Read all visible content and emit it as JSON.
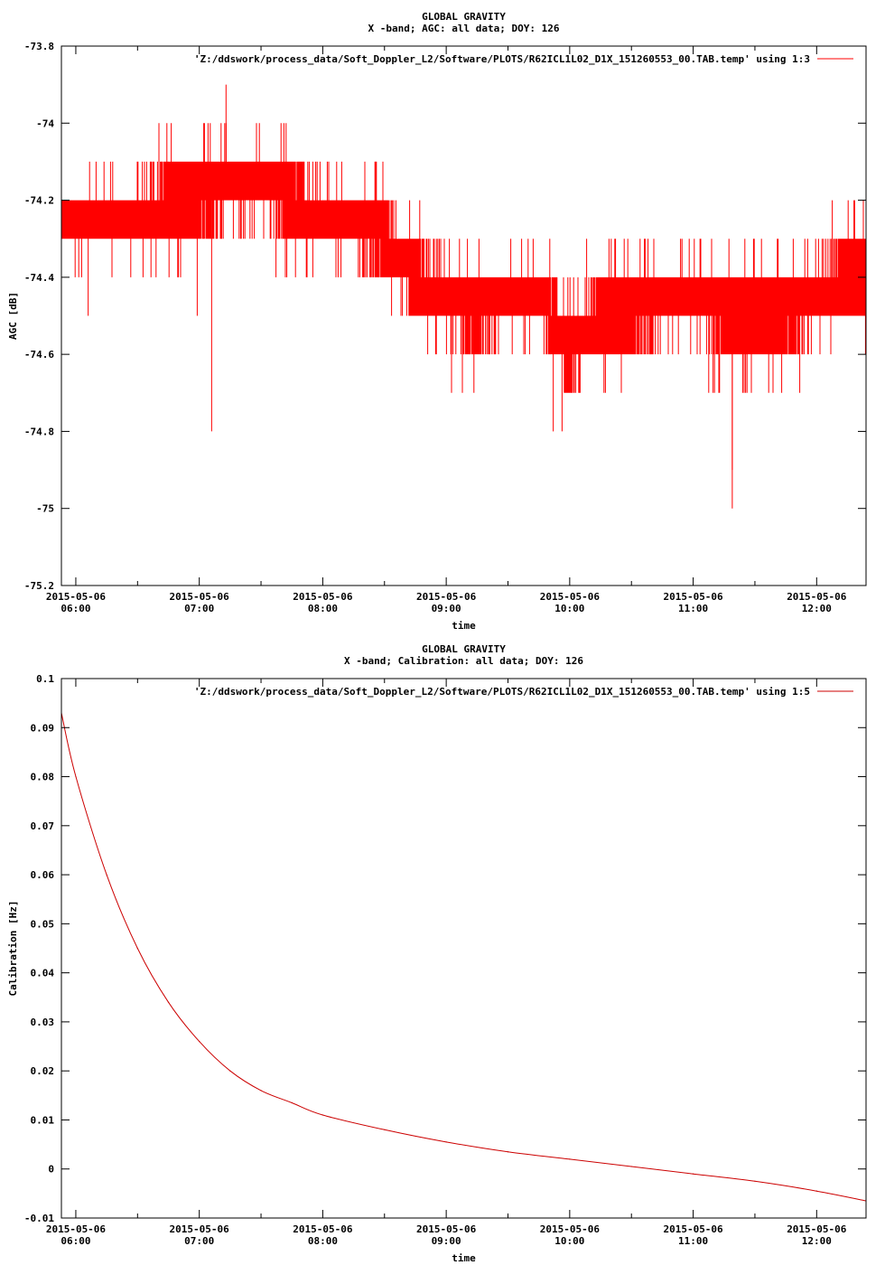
{
  "chart_data": [
    {
      "type": "line",
      "title": "GLOBAL GRAVITY",
      "subtitle": "X -band; AGC: all data; DOY: 126",
      "xlabel": "time",
      "ylabel": "AGC [dB]",
      "legend_position": "top-right",
      "series": [
        {
          "name": "'Z:/ddswork/process_data/Soft_Doppler_L2/Software/PLOTS/R62ICL1L02_D1X_151260553_00.TAB.temp' using 1:3",
          "color": "#ff0000",
          "x": [
            "05:53",
            "06:00",
            "06:15",
            "06:30",
            "06:45",
            "07:00",
            "07:15",
            "07:30",
            "07:45",
            "08:00",
            "08:15",
            "08:30",
            "08:45",
            "09:00",
            "09:15",
            "09:30",
            "09:45",
            "10:00",
            "10:15",
            "10:30",
            "10:45",
            "11:00",
            "11:15",
            "11:30",
            "11:45",
            "12:00",
            "12:15",
            "12:24"
          ],
          "y": [
            -74.25,
            -74.25,
            -74.25,
            -74.25,
            -74.2,
            -74.2,
            -74.15,
            -74.15,
            -74.2,
            -74.25,
            -74.25,
            -74.3,
            -74.4,
            -74.45,
            -74.5,
            -74.45,
            -74.45,
            -74.6,
            -74.5,
            -74.5,
            -74.45,
            -74.45,
            -74.5,
            -74.5,
            -74.5,
            -74.45,
            -74.4,
            -74.4
          ],
          "band_halfwidth": 0.1
        }
      ],
      "annotations": [
        {
          "x": "07:13",
          "y": -73.9
        },
        {
          "x": "07:06",
          "y": -74.8
        },
        {
          "x": "11:19",
          "y": -75.0
        },
        {
          "x": "11:19",
          "y": -74.9
        },
        {
          "x": "09:52",
          "y": -74.8
        },
        {
          "x": "06:06",
          "y": -74.5
        },
        {
          "x": "06:59",
          "y": -74.5
        }
      ],
      "xlim": [
        "05:53",
        "12:24"
      ],
      "xticks": [
        "06:00",
        "07:00",
        "08:00",
        "09:00",
        "10:00",
        "11:00",
        "12:00"
      ],
      "xtick_date": "2015-05-06",
      "ylim": [
        -75.2,
        -73.8
      ],
      "yticks": [
        -75.2,
        -75,
        -74.8,
        -74.6,
        -74.4,
        -74.2,
        -74,
        -73.8
      ],
      "ytick_labels": [
        "-75.2",
        "-75",
        "-74.8",
        "-74.6",
        "-74.4",
        "-74.2",
        "-74",
        "-73.8"
      ],
      "grid": false
    },
    {
      "type": "line",
      "title": "GLOBAL GRAVITY",
      "subtitle": "X -band; Calibration: all data; DOY: 126",
      "xlabel": "time",
      "ylabel": "Calibration [Hz]",
      "legend_position": "top-right",
      "series": [
        {
          "name": "'Z:/ddswork/process_data/Soft_Doppler_L2/Software/PLOTS/R62ICL1L02_D1X_151260553_00.TAB.temp' using 1:5",
          "color": "#cc0000",
          "x": [
            "05:53",
            "06:00",
            "06:15",
            "06:30",
            "06:45",
            "07:00",
            "07:15",
            "07:30",
            "07:45",
            "08:00",
            "08:30",
            "09:00",
            "09:30",
            "10:00",
            "10:30",
            "11:00",
            "11:30",
            "12:00",
            "12:24"
          ],
          "y": [
            0.093,
            0.08,
            0.06,
            0.045,
            0.034,
            0.026,
            0.02,
            0.016,
            0.0135,
            0.011,
            0.008,
            0.0055,
            0.0035,
            0.002,
            0.0005,
            -0.001,
            -0.0025,
            -0.0045,
            -0.0065
          ]
        }
      ],
      "xlim": [
        "05:53",
        "12:24"
      ],
      "xticks": [
        "06:00",
        "07:00",
        "08:00",
        "09:00",
        "10:00",
        "11:00",
        "12:00"
      ],
      "xtick_date": "2015-05-06",
      "ylim": [
        -0.01,
        0.1
      ],
      "yticks": [
        -0.01,
        0,
        0.01,
        0.02,
        0.03,
        0.04,
        0.05,
        0.06,
        0.07,
        0.08,
        0.09,
        0.1
      ],
      "ytick_labels": [
        "-0.01",
        "0",
        "0.01",
        "0.02",
        "0.03",
        "0.04",
        "0.05",
        "0.06",
        "0.07",
        "0.08",
        "0.09",
        "0.1"
      ],
      "grid": false
    }
  ]
}
